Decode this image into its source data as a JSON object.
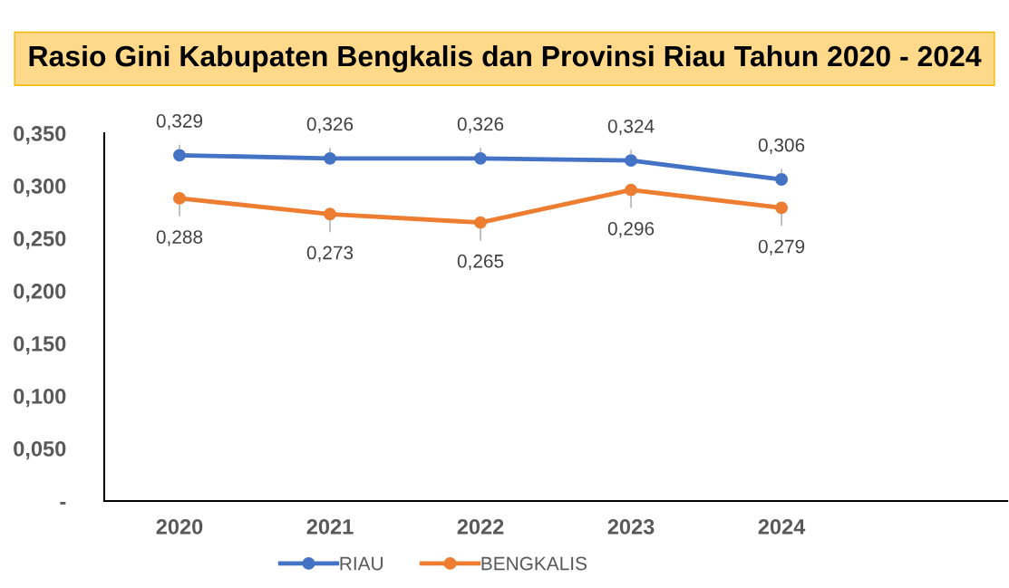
{
  "chart_data": {
    "type": "line",
    "title": "Rasio Gini Kabupaten Bengkalis dan Provinsi Riau Tahun 2020 - 2024",
    "categories": [
      "2020",
      "2021",
      "2022",
      "2023",
      "2024",
      null
    ],
    "series": [
      {
        "name": "RIAU",
        "color": "#4472c4",
        "values": [
          0.329,
          0.326,
          0.326,
          0.324,
          0.306,
          null
        ],
        "value_labels": [
          "0,329",
          "0,326",
          "0,326",
          "0,324",
          "0,306",
          null
        ]
      },
      {
        "name": "BENGKALIS",
        "color": "#ed7d31",
        "values": [
          0.288,
          0.273,
          0.265,
          0.296,
          0.279,
          null
        ],
        "value_labels": [
          "0,288",
          "0,273",
          "0,265",
          "0,296",
          "0,279",
          null
        ]
      }
    ],
    "ylim": [
      0,
      0.35
    ],
    "yticks": [
      {
        "value": 0,
        "label": "-"
      },
      {
        "value": 0.05,
        "label": "0,050"
      },
      {
        "value": 0.1,
        "label": "0,100"
      },
      {
        "value": 0.15,
        "label": "0,150"
      },
      {
        "value": 0.2,
        "label": "0,200"
      },
      {
        "value": 0.25,
        "label": "0,250"
      },
      {
        "value": 0.3,
        "label": "0,300"
      },
      {
        "value": 0.35,
        "label": "0,350"
      }
    ],
    "grid": false,
    "legend": "bottom",
    "marker": "circle",
    "line_style": "solid"
  }
}
